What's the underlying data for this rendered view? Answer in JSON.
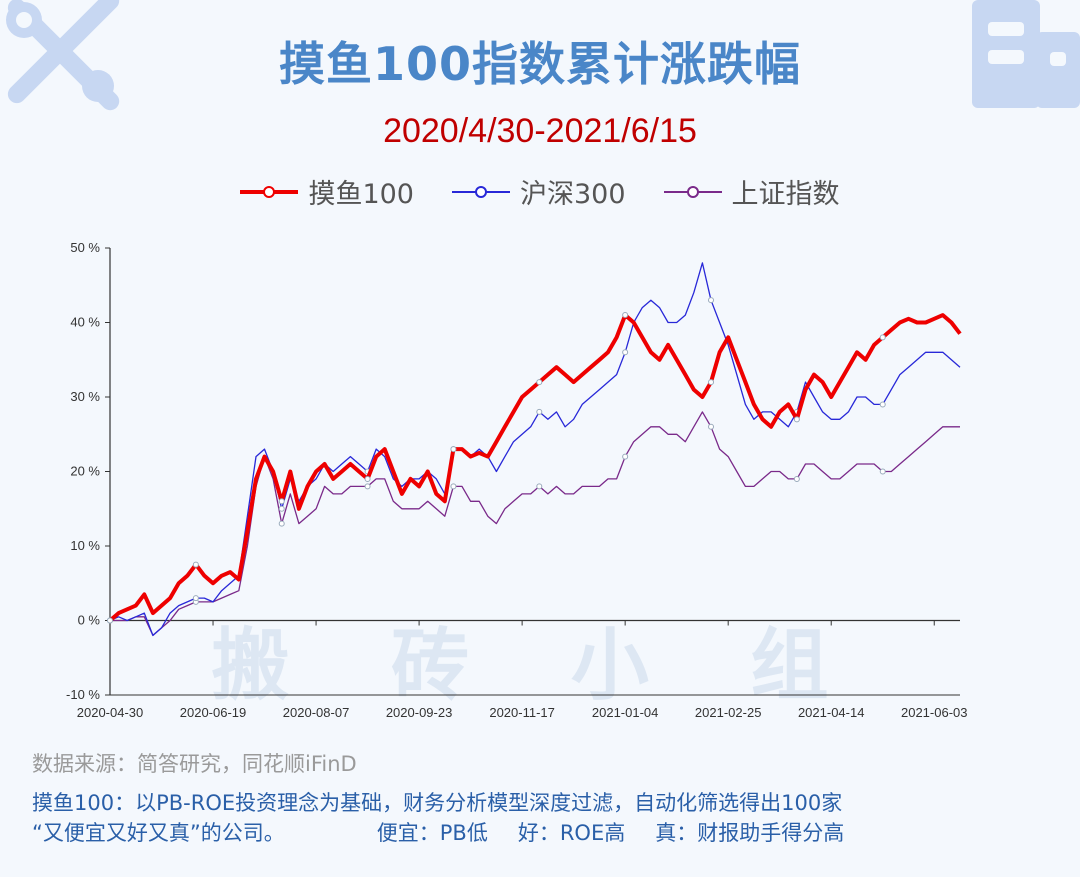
{
  "header": {
    "title": "摸鱼100指数累计涨跌幅",
    "subtitle": "2020/4/30-2021/6/15"
  },
  "watermark": "搬 砖 小 组",
  "footer": {
    "source": "数据来源：简答研究，同花顺iFinD",
    "desc_line1": "摸鱼100：以PB-ROE投资理念为基础，财务分析模型深度过滤，自动化筛选得出100家",
    "desc_line2": "“又便宜又好又真”的公司。",
    "cheap": "便宜：PB低",
    "good": "好：ROE高",
    "real": "真：财报助手得分高"
  },
  "icons": [
    "wrench-screwdriver-icon",
    "building-icon"
  ],
  "chart_data": {
    "type": "line",
    "title": "摸鱼100指数累计涨跌幅",
    "subtitle": "2020/4/30-2021/6/15",
    "x_tick_labels": [
      "2020-04-30",
      "2020-06-19",
      "2020-08-07",
      "2020-09-23",
      "2020-11-17",
      "2021-01-04",
      "2021-02-25",
      "2021-04-14",
      "2021-06-03"
    ],
    "y_tick_labels": [
      "-10 %",
      "0 %",
      "10 %",
      "20 %",
      "30 %",
      "40 %",
      "50 %"
    ],
    "ylim": [
      -10,
      50
    ],
    "y_unit": "%",
    "legend_position": "top",
    "grid": false,
    "series": [
      {
        "name": "摸鱼100",
        "color": "#ee0000",
        "values": [
          0,
          1,
          1.5,
          2,
          3.5,
          1,
          2,
          3,
          5,
          6,
          7.5,
          6,
          5,
          6,
          6.5,
          5.5,
          12,
          19,
          22,
          20,
          16,
          20,
          15,
          18,
          20,
          21,
          19,
          20,
          21,
          20,
          19,
          22,
          23,
          20,
          17,
          19,
          18,
          20,
          17,
          16,
          23,
          23,
          22,
          22.5,
          22,
          24,
          26,
          28,
          30,
          31,
          32,
          33,
          34,
          33,
          32,
          33,
          34,
          35,
          36,
          38,
          41,
          40,
          38,
          36,
          35,
          37,
          35,
          33,
          31,
          30,
          32,
          36,
          38,
          35,
          32,
          29,
          27,
          26,
          28,
          29,
          27,
          31,
          33,
          32,
          30,
          32,
          34,
          36,
          35,
          37,
          38,
          39,
          40,
          40.5,
          40,
          40,
          40.5,
          41,
          40,
          38.5
        ]
      },
      {
        "name": "沪深300",
        "color": "#2828d8",
        "values": [
          0,
          0.5,
          0,
          0.5,
          1,
          -2,
          -1,
          1,
          2,
          2.5,
          3,
          3,
          2.5,
          4,
          5,
          6,
          14,
          22,
          23,
          20,
          15,
          19,
          16,
          18,
          19,
          21,
          20,
          21,
          22,
          21,
          20,
          23,
          22,
          19,
          18,
          19,
          19,
          20,
          19,
          17,
          23,
          23,
          22,
          23,
          22,
          20,
          22,
          24,
          25,
          26,
          28,
          27,
          28,
          26,
          27,
          29,
          30,
          31,
          32,
          33,
          36,
          40,
          42,
          43,
          42,
          40,
          40,
          41,
          44,
          48,
          43,
          40,
          37,
          33,
          29,
          27,
          28,
          28,
          27,
          26,
          28,
          32,
          30,
          28,
          27,
          27,
          28,
          30,
          30,
          29,
          29,
          31,
          33,
          34,
          35,
          36,
          36,
          36,
          35,
          34
        ]
      },
      {
        "name": "上证指数",
        "color": "#7a2a8a",
        "values": [
          0,
          0,
          0,
          0.5,
          0.5,
          -2,
          -1,
          0,
          1.5,
          2,
          2.5,
          2.5,
          2.5,
          3,
          3.5,
          4,
          10,
          18,
          22,
          19,
          13,
          17,
          13,
          14,
          15,
          18,
          17,
          17,
          18,
          18,
          18,
          19,
          19,
          16,
          15,
          15,
          15,
          16,
          15,
          14,
          18,
          18,
          16,
          16,
          14,
          13,
          15,
          16,
          17,
          17,
          18,
          17,
          18,
          17,
          17,
          18,
          18,
          18,
          19,
          19,
          22,
          24,
          25,
          26,
          26,
          25,
          25,
          24,
          26,
          28,
          26,
          23,
          22,
          20,
          18,
          18,
          19,
          20,
          20,
          19,
          19,
          21,
          21,
          20,
          19,
          19,
          20,
          21,
          21,
          21,
          20,
          20,
          21,
          22,
          23,
          24,
          25,
          26,
          26,
          26
        ]
      }
    ]
  }
}
